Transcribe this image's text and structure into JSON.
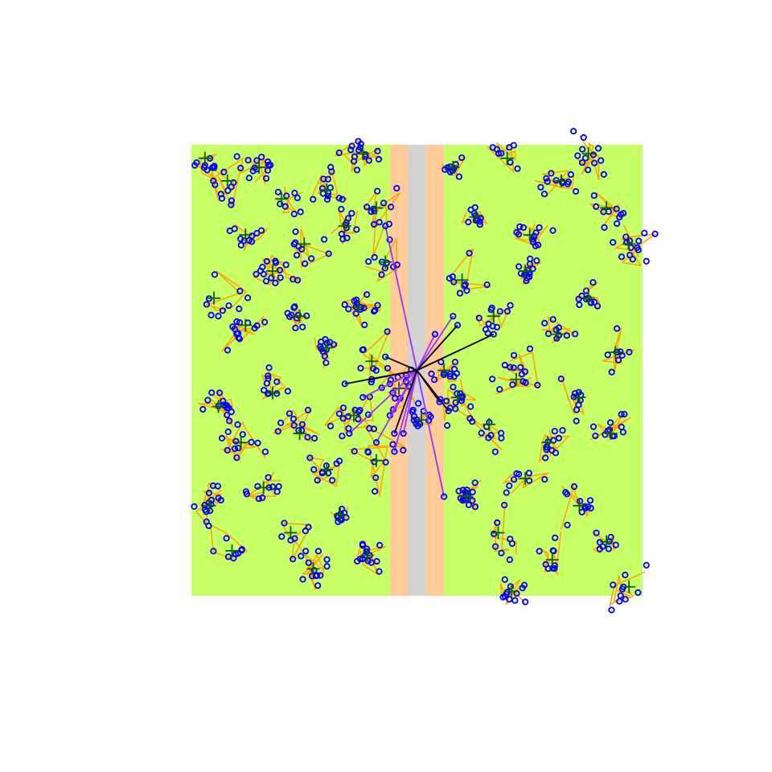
{
  "chart_data": {
    "type": "scatter",
    "title": "",
    "xlabel": "",
    "ylabel": "",
    "xlim": [
      0,
      1
    ],
    "ylim": [
      0,
      1
    ],
    "grid": false,
    "background": {
      "field_color": "#C6FF66",
      "buffer_color": "#FFCC99",
      "corridor_color": "#D3D3D3",
      "buffer_x": [
        0.44,
        0.56
      ],
      "corridor_x": [
        0.48,
        0.52
      ]
    },
    "colors": {
      "point": "#0000FF",
      "path": "#FFA500",
      "cluster_center": "#006400",
      "hub_link_primary": "#9B30FF",
      "hub_link_secondary": "#000000"
    },
    "hub": [
      0.5,
      0.5
    ],
    "cluster_centers": [
      [
        0.03,
        0.97
      ],
      [
        0.08,
        0.92
      ],
      [
        0.12,
        0.8
      ],
      [
        0.15,
        0.95
      ],
      [
        0.2,
        0.88
      ],
      [
        0.25,
        0.78
      ],
      [
        0.3,
        0.9
      ],
      [
        0.34,
        0.82
      ],
      [
        0.38,
        0.98
      ],
      [
        0.41,
        0.86
      ],
      [
        0.43,
        0.74
      ],
      [
        0.05,
        0.66
      ],
      [
        0.12,
        0.6
      ],
      [
        0.18,
        0.72
      ],
      [
        0.24,
        0.62
      ],
      [
        0.3,
        0.55
      ],
      [
        0.37,
        0.64
      ],
      [
        0.4,
        0.52
      ],
      [
        0.06,
        0.42
      ],
      [
        0.11,
        0.34
      ],
      [
        0.18,
        0.45
      ],
      [
        0.24,
        0.36
      ],
      [
        0.3,
        0.28
      ],
      [
        0.36,
        0.4
      ],
      [
        0.41,
        0.3
      ],
      [
        0.04,
        0.2
      ],
      [
        0.09,
        0.1
      ],
      [
        0.16,
        0.24
      ],
      [
        0.22,
        0.14
      ],
      [
        0.27,
        0.06
      ],
      [
        0.33,
        0.18
      ],
      [
        0.39,
        0.09
      ],
      [
        0.58,
        0.95
      ],
      [
        0.63,
        0.84
      ],
      [
        0.7,
        0.97
      ],
      [
        0.75,
        0.8
      ],
      [
        0.82,
        0.92
      ],
      [
        0.88,
        0.98
      ],
      [
        0.92,
        0.86
      ],
      [
        0.97,
        0.78
      ],
      [
        0.6,
        0.7
      ],
      [
        0.67,
        0.62
      ],
      [
        0.74,
        0.72
      ],
      [
        0.81,
        0.58
      ],
      [
        0.88,
        0.66
      ],
      [
        0.94,
        0.54
      ],
      [
        0.59,
        0.44
      ],
      [
        0.66,
        0.38
      ],
      [
        0.72,
        0.48
      ],
      [
        0.79,
        0.34
      ],
      [
        0.86,
        0.44
      ],
      [
        0.93,
        0.36
      ],
      [
        0.61,
        0.22
      ],
      [
        0.68,
        0.14
      ],
      [
        0.74,
        0.26
      ],
      [
        0.8,
        0.08
      ],
      [
        0.86,
        0.2
      ],
      [
        0.92,
        0.12
      ],
      [
        0.97,
        0.02
      ],
      [
        0.71,
        0.01
      ],
      [
        0.51,
        0.39
      ],
      [
        0.46,
        0.46
      ],
      [
        0.56,
        0.5
      ]
    ],
    "hub_links": [
      [
        0.43,
        0.82,
        "primary"
      ],
      [
        0.44,
        0.4,
        "primary"
      ],
      [
        0.45,
        0.32,
        "primary"
      ],
      [
        0.41,
        0.34,
        "primary"
      ],
      [
        0.56,
        0.22,
        "primary"
      ],
      [
        0.4,
        0.48,
        "primary"
      ],
      [
        0.44,
        0.47,
        "primary"
      ],
      [
        0.38,
        0.44,
        "primary"
      ],
      [
        0.35,
        0.36,
        "primary"
      ],
      [
        0.47,
        0.36,
        "primary"
      ],
      [
        0.54,
        0.58,
        "primary"
      ],
      [
        0.58,
        0.62,
        "primary"
      ],
      [
        0.67,
        0.58,
        "secondary"
      ],
      [
        0.59,
        0.6,
        "secondary"
      ],
      [
        0.57,
        0.41,
        "secondary"
      ],
      [
        0.55,
        0.43,
        "secondary"
      ],
      [
        0.34,
        0.47,
        "secondary"
      ],
      [
        0.43,
        0.53,
        "secondary"
      ],
      [
        0.45,
        0.36,
        "secondary"
      ]
    ]
  }
}
